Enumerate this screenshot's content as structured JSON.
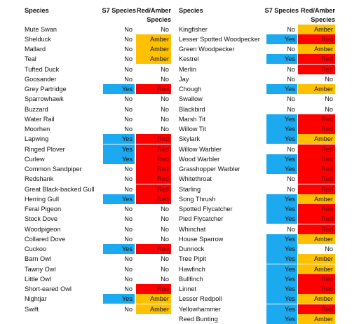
{
  "colors": {
    "Yes": "#1ba9ef",
    "Red": "#ff0000",
    "Amber": "#ffc000"
  },
  "tables": [
    {
      "header": [
        "Species",
        "S7 Species",
        "Red/Amber Species"
      ],
      "rows": [
        [
          "Mute Swan",
          "No",
          "No"
        ],
        [
          "Shelduck",
          "No",
          "Amber"
        ],
        [
          "Mallard",
          "No",
          "Amber"
        ],
        [
          "Teal",
          "No",
          "Amber"
        ],
        [
          "Tufted Duck",
          "No",
          "No"
        ],
        [
          "Goosander",
          "No",
          "No"
        ],
        [
          "Grey Partridge",
          "Yes",
          "Red"
        ],
        [
          "Sparrowhawk",
          "No",
          "No"
        ],
        [
          "Buzzard",
          "No",
          "No"
        ],
        [
          "Water Rail",
          "No",
          "No"
        ],
        [
          "Moorhen",
          "No",
          "No"
        ],
        [
          "Lapwing",
          "Yes",
          "Red"
        ],
        [
          "Ringed Plover",
          "Yes",
          "Red"
        ],
        [
          "Curlew",
          "Yes",
          "Red"
        ],
        [
          "Common Sandpiper",
          "No",
          "Red"
        ],
        [
          "Redshank",
          "No",
          "Red"
        ],
        [
          "Great Black-backed Gull",
          "No",
          "Red"
        ],
        [
          "Herring Gull",
          "Yes",
          "Red"
        ],
        [
          "Feral Pigeon",
          "No",
          "No"
        ],
        [
          "Stock Dove",
          "No",
          "No"
        ],
        [
          "Woodpigeon",
          "No",
          "No"
        ],
        [
          "Collared Dove",
          "No",
          "No"
        ],
        [
          "Cuckoo",
          "Yes",
          "Red"
        ],
        [
          "Barn Owl",
          "No",
          "No"
        ],
        [
          "Tawny Owl",
          "No",
          "No"
        ],
        [
          "Little Owl",
          "No",
          "No"
        ],
        [
          "Short-eared Owl",
          "No",
          "Red"
        ],
        [
          "Nightjar",
          "Yes",
          "Amber"
        ],
        [
          "Swift",
          "No",
          "Amber"
        ]
      ]
    },
    {
      "header": [
        "Species",
        "S7 Species",
        "Red/Amber Species"
      ],
      "rows": [
        [
          "Kingfisher",
          "No",
          "Amber"
        ],
        [
          "Lesser Spotted Woodpecker",
          "Yes",
          "Red"
        ],
        [
          "Green Woodpecker",
          "No",
          "Amber"
        ],
        [
          "Kestrel",
          "Yes",
          "Red"
        ],
        [
          "Merlin",
          "No",
          "Red"
        ],
        [
          "Jay",
          "No",
          "No"
        ],
        [
          "Chough",
          "Yes",
          "Amber"
        ],
        [
          "Swallow",
          "No",
          "No"
        ],
        [
          "Blackbird",
          "No",
          "No"
        ],
        [
          "Marsh Tit",
          "Yes",
          "Red"
        ],
        [
          "Willow Tit",
          "Yes",
          "Red"
        ],
        [
          "Skylark",
          "Yes",
          "Amber"
        ],
        [
          "Willow Warbler",
          "No",
          "Red"
        ],
        [
          "Wood Warbler",
          "Yes",
          "Red"
        ],
        [
          "Grasshopper Warbler",
          "Yes",
          "Red"
        ],
        [
          "Whitethroat",
          "No",
          "Red"
        ],
        [
          "Starling",
          "No",
          "Red"
        ],
        [
          "Song Thrush",
          "Yes",
          "Amber"
        ],
        [
          "Spotted Flycatcher",
          "Yes",
          "Red"
        ],
        [
          "Pied Flycatcher",
          "Yes",
          "Red"
        ],
        [
          "Whinchat",
          "No",
          "Red"
        ],
        [
          "House Sparrow",
          "Yes",
          "Amber"
        ],
        [
          "Dunnock",
          "Yes",
          "No"
        ],
        [
          "Tree Pipit",
          "Yes",
          "Amber"
        ],
        [
          "Hawfinch",
          "Yes",
          "Amber"
        ],
        [
          "Bullfinch",
          "Yes",
          "Red"
        ],
        [
          "Linnet",
          "Yes",
          "Red"
        ],
        [
          "Lesser Redpoll",
          "Yes",
          "Amber"
        ],
        [
          "Yellowhammer",
          "Yes",
          "Red"
        ],
        [
          "Reed Bunting",
          "Yes",
          "Amber"
        ]
      ]
    }
  ]
}
